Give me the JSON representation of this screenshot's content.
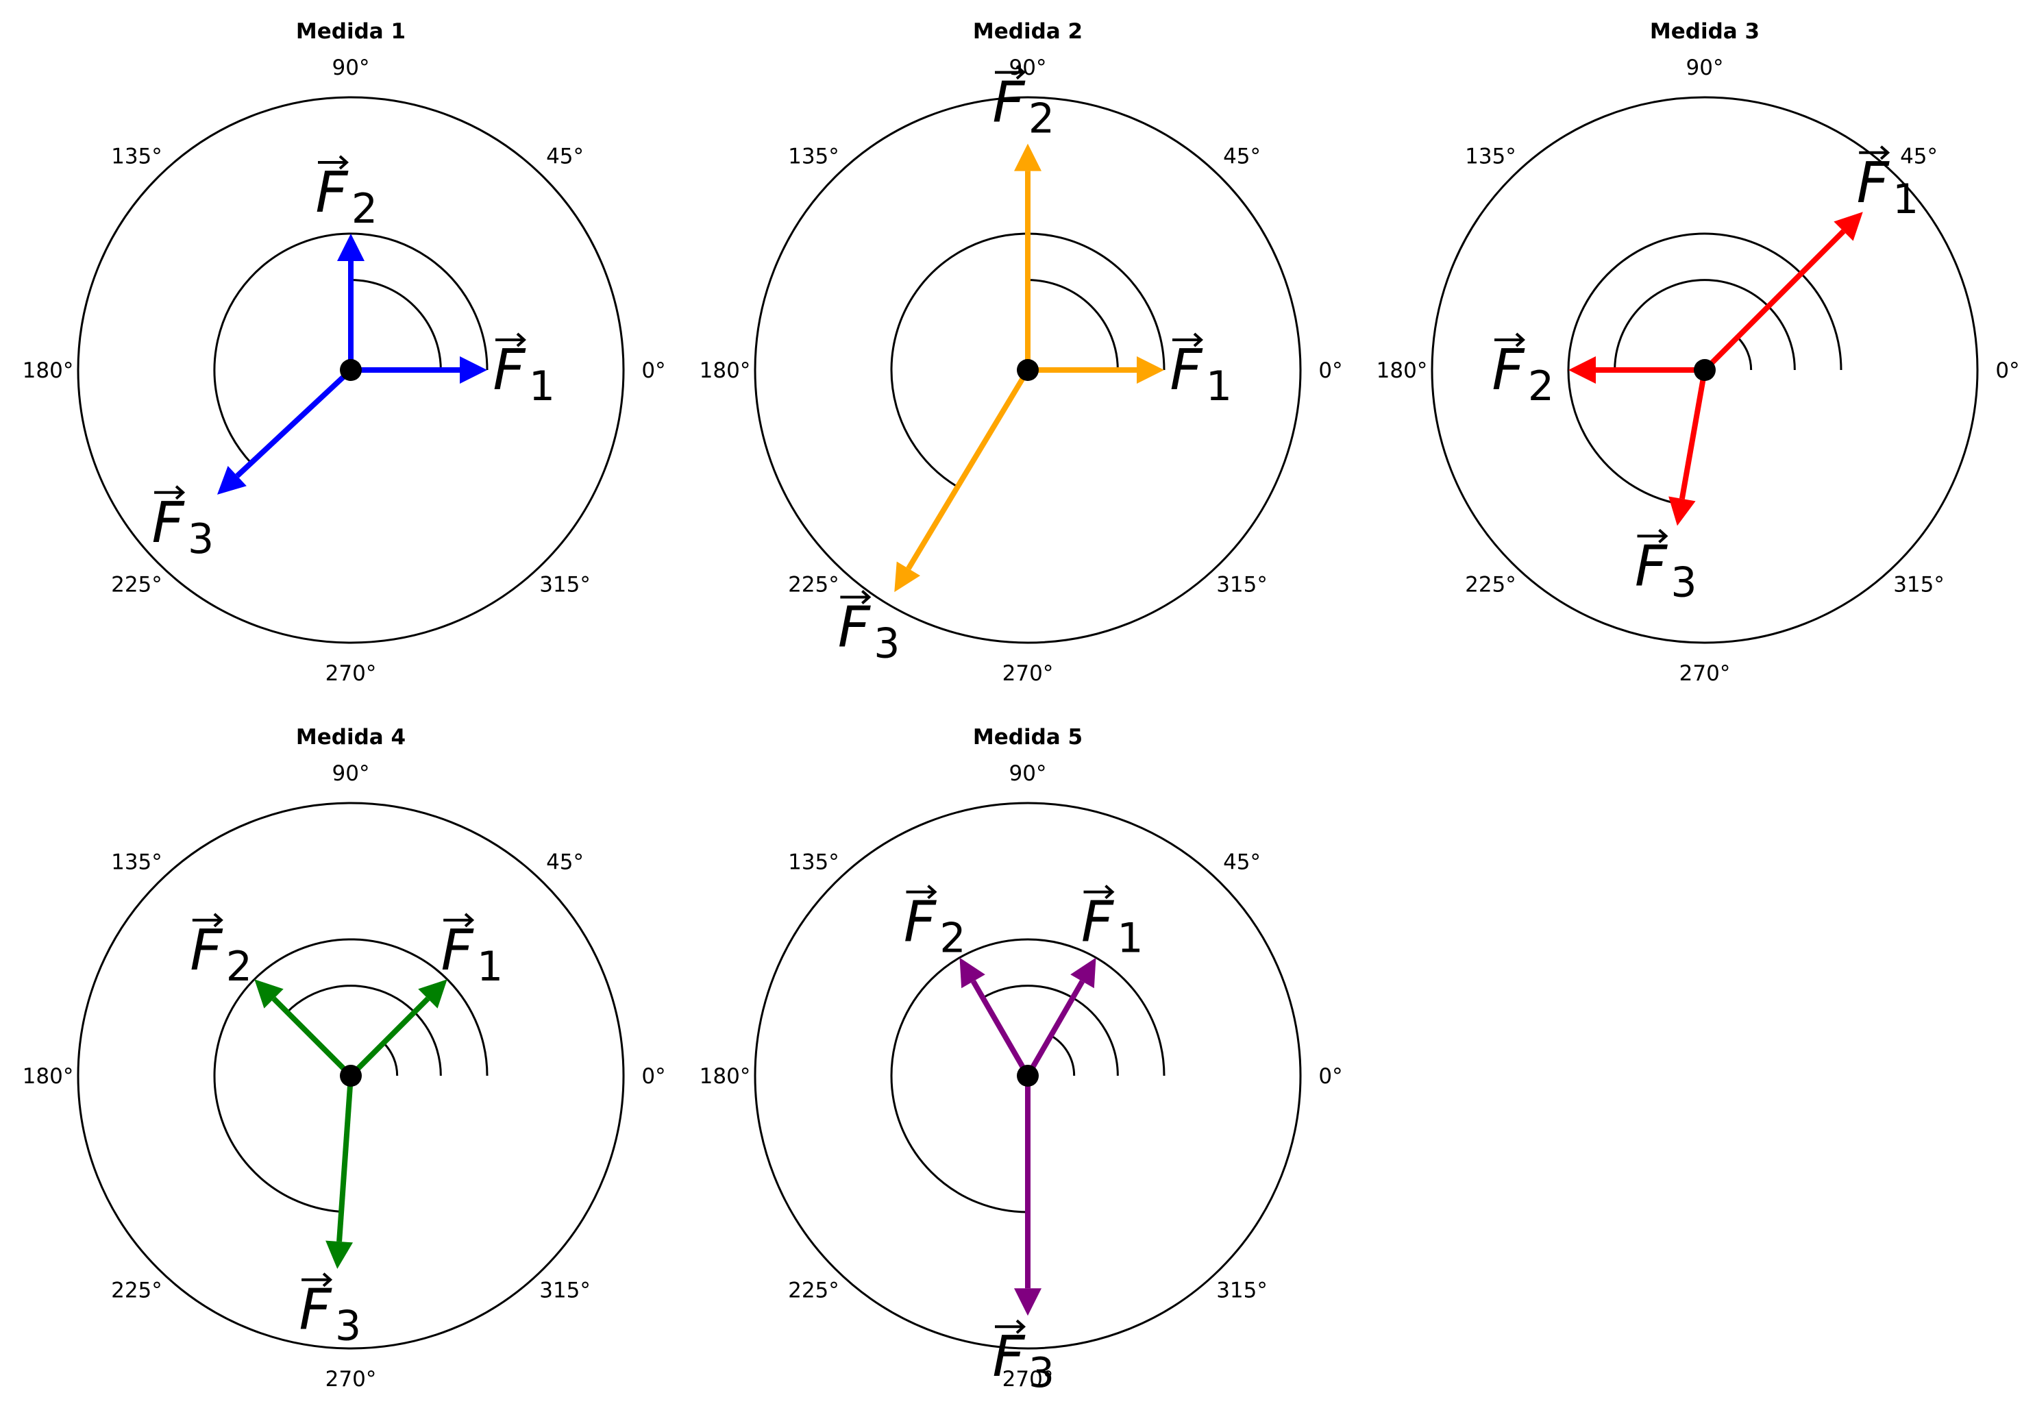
{
  "chart_data": [
    {
      "type": "polar-vector",
      "title": "Medida 1",
      "color": "#0000ff",
      "theta_ticks": [
        "0°",
        "45°",
        "90°",
        "135°",
        "180°",
        "225°",
        "270°",
        "315°"
      ],
      "vectors": [
        {
          "label": "F",
          "sub": "1",
          "angle_deg": 0,
          "magnitude": 0.5
        },
        {
          "label": "F",
          "sub": "2",
          "angle_deg": 90,
          "magnitude": 0.5
        },
        {
          "label": "F",
          "sub": "3",
          "angle_deg": 223,
          "magnitude": 0.67
        }
      ],
      "angle_arcs": [
        {
          "from_deg": 0,
          "to_deg": 90,
          "radius": 0.33
        },
        {
          "from_deg": 0,
          "to_deg": 223,
          "radius": 0.5
        }
      ]
    },
    {
      "type": "polar-vector",
      "title": "Medida 2",
      "color": "#ffa500",
      "theta_ticks": [
        "0°",
        "45°",
        "90°",
        "135°",
        "180°",
        "225°",
        "270°",
        "315°"
      ],
      "vectors": [
        {
          "label": "F",
          "sub": "1",
          "angle_deg": 0,
          "magnitude": 0.5
        },
        {
          "label": "F",
          "sub": "2",
          "angle_deg": 90,
          "magnitude": 0.83
        },
        {
          "label": "F",
          "sub": "3",
          "angle_deg": 239,
          "magnitude": 0.95
        }
      ],
      "angle_arcs": [
        {
          "from_deg": 0,
          "to_deg": 90,
          "radius": 0.33
        },
        {
          "from_deg": 0,
          "to_deg": 239,
          "radius": 0.5
        }
      ]
    },
    {
      "type": "polar-vector",
      "title": "Medida 3",
      "color": "#ff0000",
      "theta_ticks": [
        "0°",
        "45°",
        "90°",
        "135°",
        "180°",
        "225°",
        "270°",
        "315°"
      ],
      "vectors": [
        {
          "label": "F",
          "sub": "1",
          "angle_deg": 45,
          "magnitude": 0.82
        },
        {
          "label": "F",
          "sub": "2",
          "angle_deg": 180,
          "magnitude": 0.5
        },
        {
          "label": "F",
          "sub": "3",
          "angle_deg": 260,
          "magnitude": 0.58
        }
      ],
      "angle_arcs": [
        {
          "from_deg": 0,
          "to_deg": 45,
          "radius": 0.17
        },
        {
          "from_deg": 0,
          "to_deg": 180,
          "radius": 0.33
        },
        {
          "from_deg": 0,
          "to_deg": 260,
          "radius": 0.5
        }
      ]
    },
    {
      "type": "polar-vector",
      "title": "Medida 4",
      "color": "#008000",
      "theta_ticks": [
        "0°",
        "45°",
        "90°",
        "135°",
        "180°",
        "225°",
        "270°",
        "315°"
      ],
      "vectors": [
        {
          "label": "F",
          "sub": "1",
          "angle_deg": 45,
          "magnitude": 0.5
        },
        {
          "label": "F",
          "sub": "2",
          "angle_deg": 135,
          "magnitude": 0.5
        },
        {
          "label": "F",
          "sub": "3",
          "angle_deg": 266,
          "magnitude": 0.71
        }
      ],
      "angle_arcs": [
        {
          "from_deg": 0,
          "to_deg": 45,
          "radius": 0.17
        },
        {
          "from_deg": 0,
          "to_deg": 135,
          "radius": 0.33
        },
        {
          "from_deg": 0,
          "to_deg": 266,
          "radius": 0.5
        }
      ]
    },
    {
      "type": "polar-vector",
      "title": "Medida 5",
      "color": "#800080",
      "theta_ticks": [
        "0°",
        "45°",
        "90°",
        "135°",
        "180°",
        "225°",
        "270°",
        "315°"
      ],
      "vectors": [
        {
          "label": "F",
          "sub": "1",
          "angle_deg": 60,
          "magnitude": 0.5
        },
        {
          "label": "F",
          "sub": "2",
          "angle_deg": 120,
          "magnitude": 0.5
        },
        {
          "label": "F",
          "sub": "3",
          "angle_deg": 270,
          "magnitude": 0.88
        }
      ],
      "angle_arcs": [
        {
          "from_deg": 0,
          "to_deg": 60,
          "radius": 0.17
        },
        {
          "from_deg": 0,
          "to_deg": 120,
          "radius": 0.33
        },
        {
          "from_deg": 0,
          "to_deg": 270,
          "radius": 0.5
        }
      ]
    }
  ]
}
